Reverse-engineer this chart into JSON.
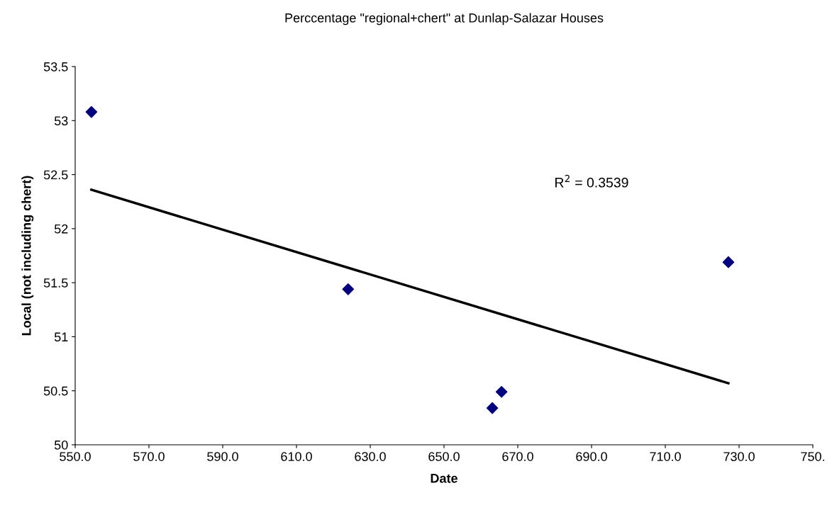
{
  "chart_data": {
    "type": "scatter",
    "title": "Perccentage \"regional+chert\" at Dunlap-Salazar Houses",
    "xlabel": "Date",
    "ylabel": "Local (not including chert)",
    "series": [
      {
        "color": "#000080",
        "marker": "diamond",
        "x": [
          554.4,
          624.0,
          663.1,
          665.6,
          727.1
        ],
        "values": [
          53.08,
          51.44,
          50.34,
          50.49,
          51.69
        ]
      },
      {
        "type": "line",
        "color": "#000000",
        "marker": "none",
        "line_style": "solid",
        "x": [
          554.4,
          727.1
        ],
        "values": [
          52.36,
          50.57
        ]
      }
    ],
    "annotations": [
      "R$^{2}$ = 0.3539"
    ],
    "xlim": [
      550,
      750
    ],
    "xticks": [
      {
        "value": 550,
        "label": "550.0"
      },
      {
        "value": 570,
        "label": "570.0"
      },
      {
        "value": 590,
        "label": "590.0"
      },
      {
        "value": 610,
        "label": "610.0"
      },
      {
        "value": 630,
        "label": "630.0"
      },
      {
        "value": 650,
        "label": "650.0"
      },
      {
        "value": 670,
        "label": "670.0"
      },
      {
        "value": 690,
        "label": "690.0"
      },
      {
        "value": 710,
        "label": "710.0"
      },
      {
        "value": 730,
        "label": "730.0"
      },
      {
        "value": 750,
        "label": "750."
      }
    ],
    "ylim": [
      50,
      53.5
    ],
    "yticks": [
      50,
      50.5,
      51,
      51.5,
      52,
      52.5,
      53,
      53.5
    ],
    "grid": false,
    "legend": false
  }
}
